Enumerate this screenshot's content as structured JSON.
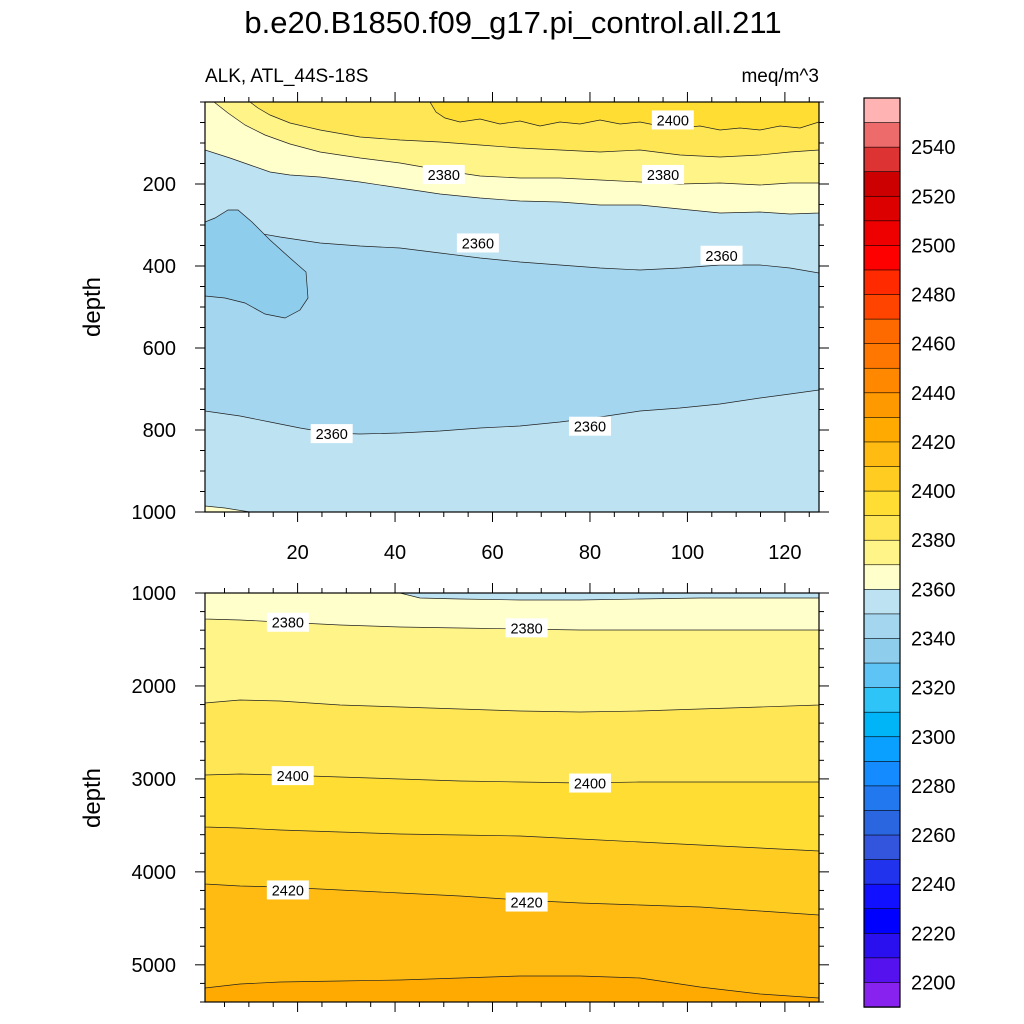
{
  "title": "b.e20.B1850.f09_g17.pi_control.all.211",
  "subtitle_left": "ALK, ATL_44S-18S",
  "subtitle_right": "meq/m^3",
  "chart_data": [
    {
      "type": "contour",
      "panel": "upper",
      "ylabel": "depth",
      "xlim": [
        1,
        127
      ],
      "ylim": [
        0,
        1000
      ],
      "y_inverted": true,
      "x_ticks": [
        "20",
        "40",
        "60",
        "80",
        "100",
        "120"
      ],
      "y_ticks": [
        "200",
        "400",
        "600",
        "800",
        "1000"
      ],
      "x_tick_values": [
        20,
        40,
        60,
        80,
        100,
        120
      ],
      "y_tick_values": [
        200,
        400,
        600,
        800,
        1000
      ],
      "contour_labels": [
        {
          "text": "2400",
          "x": 97,
          "y": 45
        },
        {
          "text": "2380",
          "x": 50,
          "y": 178
        },
        {
          "text": "2380",
          "x": 95,
          "y": 178
        },
        {
          "text": "2360",
          "x": 57,
          "y": 345
        },
        {
          "text": "2360",
          "x": 107,
          "y": 375
        },
        {
          "text": "2360",
          "x": 27,
          "y": 810
        },
        {
          "text": "2360",
          "x": 80,
          "y": 792
        }
      ]
    },
    {
      "type": "contour",
      "panel": "lower",
      "ylabel": "depth",
      "xlim": [
        1,
        127
      ],
      "ylim": [
        1000,
        5400
      ],
      "y_inverted": true,
      "x_ticks": [],
      "y_ticks": [
        "1000",
        "2000",
        "3000",
        "4000",
        "5000"
      ],
      "y_tick_values": [
        1000,
        2000,
        3000,
        4000,
        5000
      ],
      "contour_labels": [
        {
          "text": "2380",
          "x": 18,
          "y": 1320
        },
        {
          "text": "2380",
          "x": 67,
          "y": 1380
        },
        {
          "text": "2400",
          "x": 19,
          "y": 2970
        },
        {
          "text": "2400",
          "x": 80,
          "y": 3050
        },
        {
          "text": "2420",
          "x": 18,
          "y": 4200
        },
        {
          "text": "2420",
          "x": 67,
          "y": 4330
        }
      ]
    }
  ],
  "colorbar": {
    "labels": [
      "2540",
      "2520",
      "2500",
      "2480",
      "2460",
      "2440",
      "2420",
      "2400",
      "2380",
      "2360",
      "2340",
      "2320",
      "2300",
      "2280",
      "2260",
      "2240",
      "2220",
      "2200"
    ],
    "colors": [
      "#ffb3b3",
      "#ee6b6b",
      "#dd3333",
      "#cc0000",
      "#dd0000",
      "#ee0000",
      "#ff0000",
      "#ff2a00",
      "#ff4400",
      "#ff6a00",
      "#ff7700",
      "#ff8800",
      "#ff9900",
      "#ffaa00",
      "#ffbb11",
      "#ffcc22",
      "#ffdd33",
      "#ffe655",
      "#fff488",
      "#ffffcc",
      "#bde3f3",
      "#a4d6f0",
      "#8fcdec",
      "#5ec4f5",
      "#2ec4f8",
      "#00b4f8",
      "#0aa0ff",
      "#148cff",
      "#2278ee",
      "#2a66e0",
      "#3355dd",
      "#2233ee",
      "#1111ff",
      "#0000ff",
      "#2a10ee",
      "#5511ee",
      "#8822ee"
    ]
  }
}
